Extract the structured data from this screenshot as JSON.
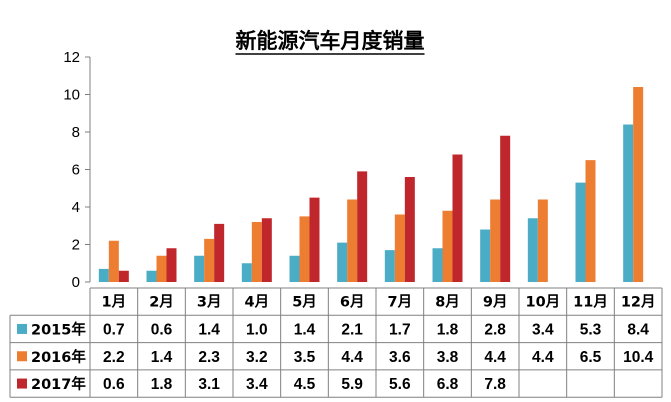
{
  "chart_data": {
    "type": "bar",
    "title": "新能源汽车月度销量",
    "categories": [
      "1月",
      "2月",
      "3月",
      "4月",
      "5月",
      "6月",
      "7月",
      "8月",
      "9月",
      "10月",
      "11月",
      "12月"
    ],
    "series": [
      {
        "name": "2015年",
        "color": "#4bacc6",
        "values": [
          0.7,
          0.6,
          1.4,
          1.0,
          1.4,
          2.1,
          1.7,
          1.8,
          2.8,
          3.4,
          5.3,
          8.4
        ],
        "labels": [
          "0.7",
          "0.6",
          "1.4",
          "1.0",
          "1.4",
          "2.1",
          "1.7",
          "1.8",
          "2.8",
          "3.4",
          "5.3",
          "8.4"
        ]
      },
      {
        "name": "2016年",
        "color": "#ed7d31",
        "values": [
          2.2,
          1.4,
          2.3,
          3.2,
          3.5,
          4.4,
          3.6,
          3.8,
          4.4,
          4.4,
          6.5,
          10.4
        ],
        "labels": [
          "2.2",
          "1.4",
          "2.3",
          "3.2",
          "3.5",
          "4.4",
          "3.6",
          "3.8",
          "4.4",
          "4.4",
          "6.5",
          "10.4"
        ]
      },
      {
        "name": "2017年",
        "color": "#c0272d",
        "values": [
          0.6,
          1.8,
          3.1,
          3.4,
          4.5,
          5.9,
          5.6,
          6.8,
          7.8,
          null,
          null,
          null
        ],
        "labels": [
          "0.6",
          "1.8",
          "3.1",
          "3.4",
          "4.5",
          "5.9",
          "5.6",
          "6.8",
          "7.8",
          "",
          "",
          ""
        ]
      }
    ],
    "ylim": [
      0,
      12
    ],
    "yticks": [
      "0",
      "2",
      "4",
      "6",
      "8",
      "10",
      "12"
    ],
    "grid": false,
    "legend": "data-table"
  }
}
